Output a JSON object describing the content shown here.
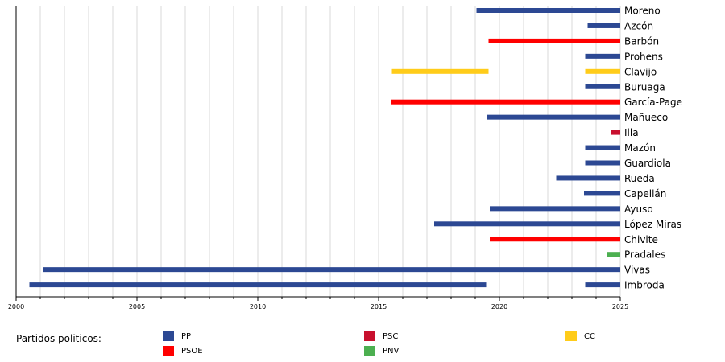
{
  "chart_data": {
    "type": "bar",
    "orientation": "horizontal-timeline",
    "xlim": [
      2000,
      2025
    ],
    "x_ticks": [
      2000,
      2005,
      2010,
      2015,
      2020,
      2025
    ],
    "grid": true,
    "legend_title": "Partidos politicos:",
    "parties": [
      {
        "name": "PP",
        "color": "#2c4893"
      },
      {
        "name": "PSOE",
        "color": "#ff0000"
      },
      {
        "name": "PSC",
        "color": "#c8102e"
      },
      {
        "name": "PNV",
        "color": "#4caf50"
      },
      {
        "name": "CC",
        "color": "#ffcc1a"
      }
    ],
    "rows": [
      {
        "name": "Moreno",
        "terms": [
          {
            "start": 2019.05,
            "end": 2025,
            "party": "PP"
          }
        ]
      },
      {
        "name": "Azcón",
        "terms": [
          {
            "start": 2023.65,
            "end": 2025,
            "party": "PP"
          }
        ]
      },
      {
        "name": "Barbón",
        "terms": [
          {
            "start": 2019.55,
            "end": 2025,
            "party": "PSOE"
          }
        ]
      },
      {
        "name": "Prohens",
        "terms": [
          {
            "start": 2023.55,
            "end": 2025,
            "party": "PP"
          }
        ]
      },
      {
        "name": "Clavijo",
        "terms": [
          {
            "start": 2015.55,
            "end": 2019.55,
            "party": "CC"
          },
          {
            "start": 2023.55,
            "end": 2025,
            "party": "CC"
          }
        ]
      },
      {
        "name": "Buruaga",
        "terms": [
          {
            "start": 2023.55,
            "end": 2025,
            "party": "PP"
          }
        ]
      },
      {
        "name": "García-Page",
        "terms": [
          {
            "start": 2015.5,
            "end": 2025,
            "party": "PSOE"
          }
        ]
      },
      {
        "name": "Mañueco",
        "terms": [
          {
            "start": 2019.5,
            "end": 2025,
            "party": "PP"
          }
        ]
      },
      {
        "name": "Illa",
        "terms": [
          {
            "start": 2024.6,
            "end": 2025,
            "party": "PSC"
          }
        ]
      },
      {
        "name": "Mazón",
        "terms": [
          {
            "start": 2023.55,
            "end": 2025,
            "party": "PP"
          }
        ]
      },
      {
        "name": "Guardiola",
        "terms": [
          {
            "start": 2023.55,
            "end": 2025,
            "party": "PP"
          }
        ]
      },
      {
        "name": "Rueda",
        "terms": [
          {
            "start": 2022.35,
            "end": 2025,
            "party": "PP"
          }
        ]
      },
      {
        "name": "Capellán",
        "terms": [
          {
            "start": 2023.5,
            "end": 2025,
            "party": "PP"
          }
        ]
      },
      {
        "name": "Ayuso",
        "terms": [
          {
            "start": 2019.6,
            "end": 2025,
            "party": "PP"
          }
        ]
      },
      {
        "name": "López Miras",
        "terms": [
          {
            "start": 2017.3,
            "end": 2025,
            "party": "PP"
          }
        ]
      },
      {
        "name": "Chivite",
        "terms": [
          {
            "start": 2019.6,
            "end": 2025,
            "party": "PSOE"
          }
        ]
      },
      {
        "name": "Pradales",
        "terms": [
          {
            "start": 2024.45,
            "end": 2025,
            "party": "PNV"
          }
        ]
      },
      {
        "name": "Vivas",
        "terms": [
          {
            "start": 2001.1,
            "end": 2025,
            "party": "PP"
          }
        ]
      },
      {
        "name": "Imbroda",
        "terms": [
          {
            "start": 2000.55,
            "end": 2019.45,
            "party": "PP"
          },
          {
            "start": 2023.55,
            "end": 2025,
            "party": "PP"
          }
        ]
      }
    ]
  }
}
